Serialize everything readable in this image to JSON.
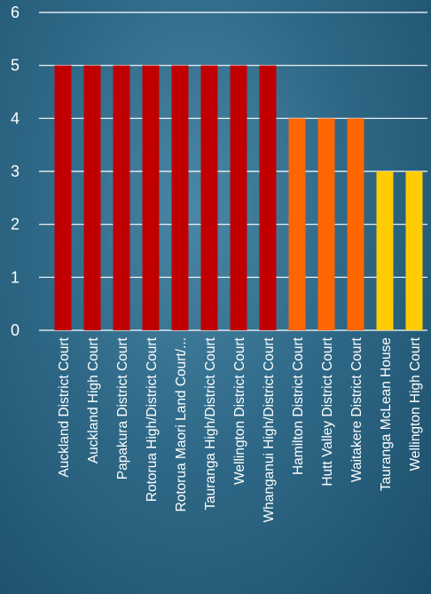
{
  "chart_data": {
    "type": "bar",
    "categories": [
      "Auckland District Court",
      "Auckland High Court",
      "Papakura District Court",
      "Rotorua High/District Court",
      "Rotorua Maori Land Court/...",
      "Tauranga High/District Court",
      "Wellington District Court",
      "Whanganui High/District Court",
      "Hamilton District Court",
      "Hutt Valley District Court",
      "Waitakere District Court",
      "Tauranga McLean House",
      "Wellington High Court"
    ],
    "values": [
      5,
      5,
      5,
      5,
      5,
      5,
      5,
      5,
      4,
      4,
      4,
      3,
      3
    ],
    "ylim": [
      0,
      6
    ],
    "yticks": [
      "0",
      "1",
      "2",
      "3",
      "4",
      "5",
      "6"
    ],
    "grid": true,
    "legend": "none",
    "colors": {
      "5": "#c00000",
      "4": "#ff6600",
      "3": "#ffcc00"
    }
  }
}
